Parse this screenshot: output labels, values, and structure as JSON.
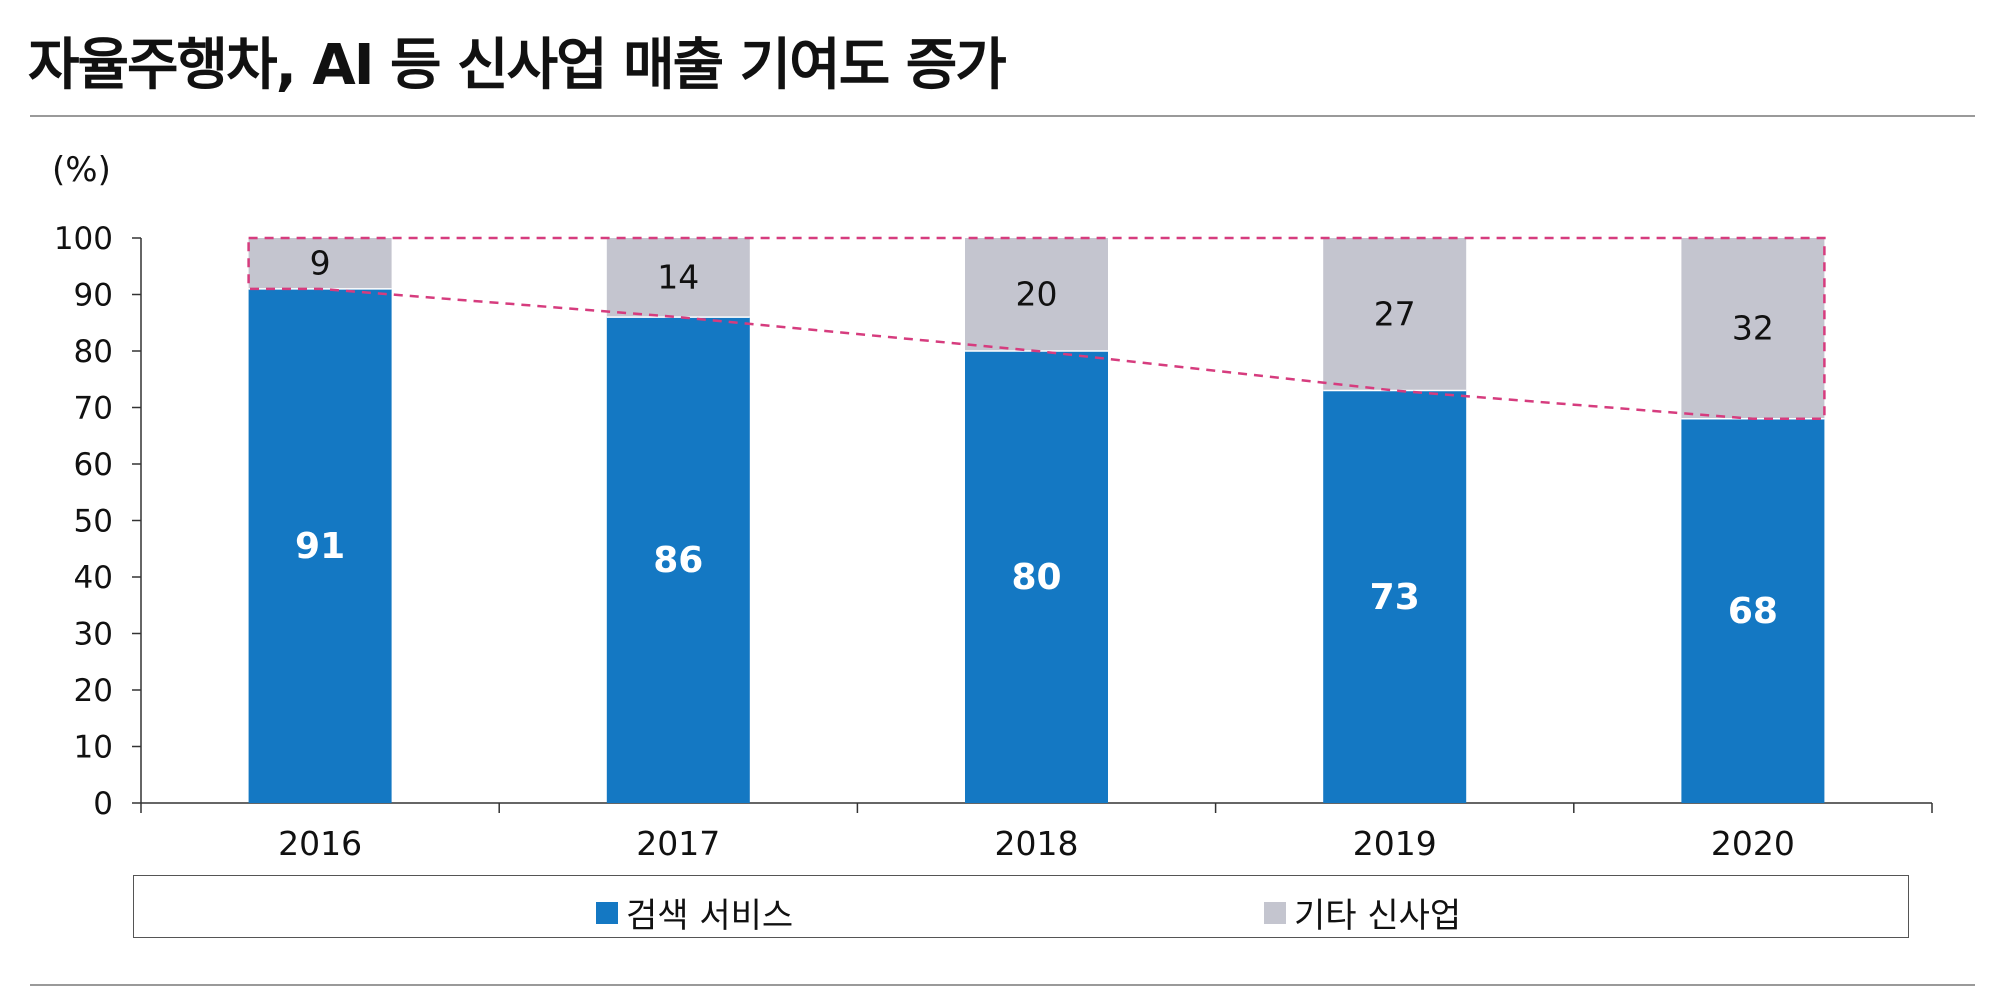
{
  "title": "자율주행차, AI 등 신사업 매출 기여도 증가",
  "chart_data": {
    "type": "bar",
    "stacked": true,
    "unit_label": "(%)",
    "categories": [
      "2016",
      "2017",
      "2018",
      "2019",
      "2020"
    ],
    "series": [
      {
        "name": "검색 서비스",
        "values": [
          91,
          86,
          80,
          73,
          68
        ],
        "color": "#1478c3",
        "label_color": "#ffffff"
      },
      {
        "name": "기타 신사업",
        "values": [
          9,
          14,
          20,
          27,
          32
        ],
        "color": "#c4c5cf",
        "label_color": "#111111"
      }
    ],
    "ylim": [
      0,
      100
    ],
    "yticks": [
      0,
      10,
      20,
      30,
      40,
      50,
      60,
      70,
      80,
      90,
      100
    ],
    "grid": false,
    "legend_position": "bottom",
    "annotation_color": "#d63c7e"
  }
}
